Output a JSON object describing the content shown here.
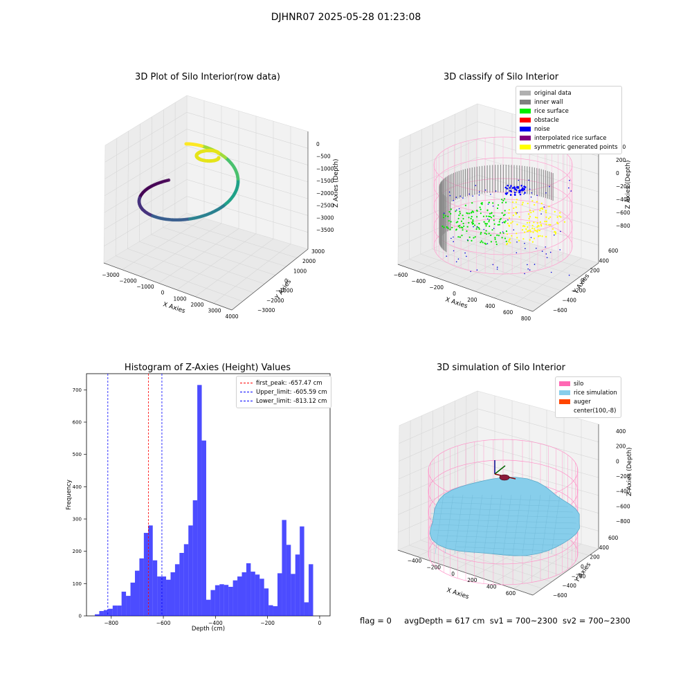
{
  "suptitle": "DJHNR07 2025-05-28 01:23:08",
  "footer": {
    "flag": "flag = 0",
    "avg": "avgDepth = 617 cm",
    "sv1": "sv1 = 700~2300",
    "sv2": "sv2 = 700~2300"
  },
  "chart_data": [
    {
      "type": "scatter",
      "title": "3D Plot of Silo Interior(row data)",
      "xlabel": "X Axies",
      "ylabel": "Y Axies",
      "zlabel": "Z Axies (Depth)",
      "x_ticks": [
        "−3000",
        "−2000",
        "−1000",
        "0",
        "1000",
        "2000",
        "3000",
        "4000"
      ],
      "y_ticks": [
        "−3000",
        "−2000",
        "−1000",
        "0",
        "1000",
        "2000",
        "3000"
      ],
      "z_ticks": [
        "0",
        "−500",
        "−1000",
        "−1500",
        "−2000",
        "−2500",
        "−3000",
        "−3500"
      ],
      "colormap": "viridis"
    },
    {
      "type": "scatter",
      "title": "3D classify of Silo Interior",
      "xlabel": "X Axies",
      "ylabel": "Y Axies",
      "zlabel": "Z Axies (Depth)",
      "x_ticks": [
        "−600",
        "−400",
        "−200",
        "0",
        "200",
        "400",
        "600",
        "800"
      ],
      "y_ticks": [
        "−600",
        "−400",
        "−200",
        "0",
        "200",
        "400",
        "600"
      ],
      "z_ticks": [
        "400",
        "200",
        "0",
        "−200",
        "−400",
        "−600",
        "−800"
      ],
      "legend": [
        {
          "label": "original data",
          "color": "#b0b0b0"
        },
        {
          "label": "inner wall",
          "color": "#808080"
        },
        {
          "label": "rice surface",
          "color": "#00ee00"
        },
        {
          "label": "obstacle",
          "color": "#ff0000"
        },
        {
          "label": "noise",
          "color": "#0000ee"
        },
        {
          "label": "interpolated rice surface",
          "color": "#800080"
        },
        {
          "label": "symmetric generated points",
          "color": "#ffff00"
        }
      ]
    },
    {
      "type": "bar",
      "title": "Histogram of Z-Axies (Height) Values",
      "xlabel": "Depth (cm)",
      "ylabel": "Frequency",
      "xlim": [
        -895,
        40
      ],
      "ylim": [
        0,
        750
      ],
      "x_ticks": [
        -800,
        -600,
        -400,
        -200,
        0
      ],
      "x_tick_labels": [
        "−800",
        "−600",
        "−400",
        "−200",
        "0"
      ],
      "y_ticks": [
        0,
        100,
        200,
        300,
        400,
        500,
        600,
        700
      ],
      "bar_color": "#0000ff",
      "bin_width": 17.1,
      "bin_start": -863,
      "values": [
        5,
        15,
        18,
        22,
        32,
        32,
        75,
        62,
        103,
        140,
        178,
        257,
        280,
        172,
        122,
        122,
        112,
        135,
        160,
        195,
        222,
        280,
        358,
        715,
        543,
        50,
        80,
        95,
        98,
        96,
        90,
        110,
        122,
        135,
        163,
        137,
        128,
        115,
        85,
        33,
        30,
        132,
        297,
        220,
        130,
        190,
        277,
        42,
        160
      ],
      "lines": [
        {
          "label": "first_peak: -657.47 cm",
          "x": -657.47,
          "color": "#ff0000"
        },
        {
          "label": "Upper_limit: -605.59 cm",
          "x": -605.59,
          "color": "#0000ff"
        },
        {
          "label": "Lower_limit: -813.12 cm",
          "x": -813.12,
          "color": "#0000ff"
        }
      ]
    },
    {
      "type": "other",
      "title": "3D simulation of Silo Interior",
      "xlabel": "X Axies",
      "ylabel": "Y Axies",
      "zlabel": "Z Axies (Depth)",
      "x_ticks": [
        "−400",
        "−200",
        "0",
        "200",
        "400",
        "600"
      ],
      "y_ticks": [
        "−600",
        "−400",
        "−200",
        "0",
        "200",
        "400",
        "600"
      ],
      "z_ticks": [
        "400",
        "200",
        "0",
        "−200",
        "−400",
        "−600",
        "−800"
      ],
      "legend": [
        {
          "label": "silo",
          "color": "#ff69b4"
        },
        {
          "label": "rice simulation",
          "color": "#87ceeb"
        },
        {
          "label": "auger",
          "color": "#ff4500"
        },
        {
          "label": "center(100,-8)",
          "color": "#ffffff"
        }
      ]
    }
  ]
}
